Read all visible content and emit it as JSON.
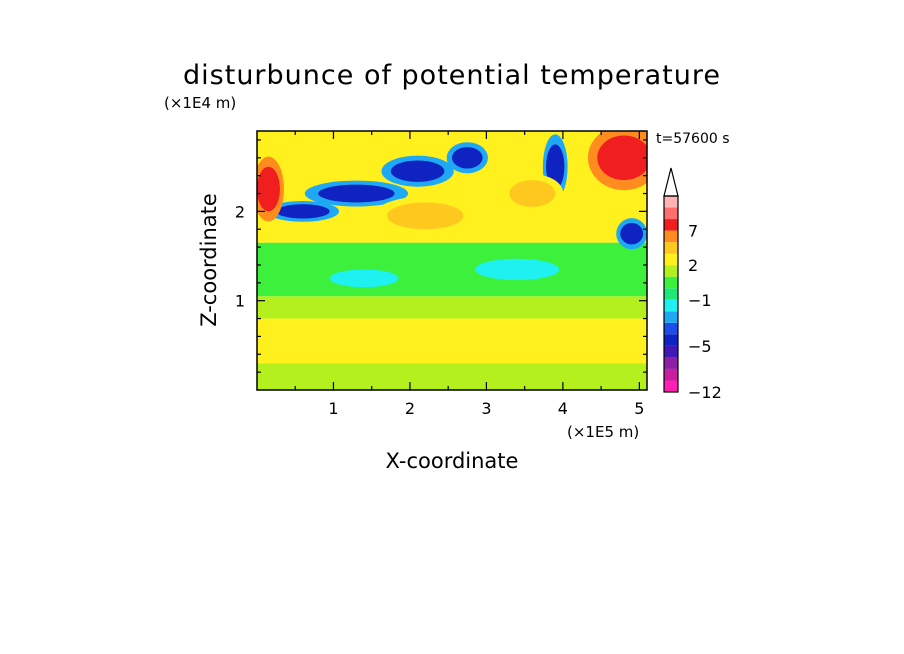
{
  "chart_data": {
    "type": "heatmap",
    "title": "disturbunce of potential temperature",
    "xlabel": "X-coordinate",
    "ylabel": "Z-coordinate",
    "x_unit": "(×1E5 m)",
    "y_unit": "(×1E4 m)",
    "time_label": "t=57600 s",
    "xlim": [
      0,
      5.1
    ],
    "ylim": [
      0,
      2.9
    ],
    "x_ticks": [
      {
        "value": 1,
        "label": "1"
      },
      {
        "value": 2,
        "label": "2"
      },
      {
        "value": 3,
        "label": "3"
      },
      {
        "value": 4,
        "label": "4"
      },
      {
        "value": 5,
        "label": "5"
      }
    ],
    "y_ticks": [
      {
        "value": 1,
        "label": "1"
      },
      {
        "value": 2,
        "label": "2"
      }
    ],
    "colorbar": {
      "levels": [
        -12,
        -10,
        -8,
        -6,
        -5,
        -4,
        -3,
        -2,
        -1,
        0,
        1,
        2,
        3,
        5,
        7,
        9,
        11
      ],
      "colors": [
        "#ff1fb4",
        "#c81ea0",
        "#8c1fa6",
        "#4019b6",
        "#0e23c0",
        "#1d4fe8",
        "#1fa8f4",
        "#1ff0f0",
        "#1fe876",
        "#3cf03c",
        "#b4f01e",
        "#fff01e",
        "#ffc81e",
        "#ff8c1e",
        "#f01e1e",
        "#ff6e6e",
        "#ffb4b4"
      ],
      "tick_labels": [
        {
          "value": 7,
          "label": "7"
        },
        {
          "value": 2,
          "label": "2"
        },
        {
          "value": -1,
          "label": "−1"
        },
        {
          "value": -5,
          "label": "−5"
        },
        {
          "value": -12,
          "label": "−12"
        }
      ],
      "extend": "max"
    },
    "field_features": [
      {
        "kind": "band",
        "z_min": 0.0,
        "z_max": 0.3,
        "value": 1.5,
        "desc": "warm near-surface layer"
      },
      {
        "kind": "band",
        "z_min": 0.3,
        "z_max": 0.8,
        "value": 2.5
      },
      {
        "kind": "band",
        "z_min": 0.8,
        "z_max": 1.05,
        "value": 1.5
      },
      {
        "kind": "band",
        "z_min": 1.05,
        "z_max": 1.65,
        "value": 0.5
      },
      {
        "kind": "band",
        "z_min": 1.65,
        "z_max": 2.9,
        "value": 2.5
      },
      {
        "kind": "blob",
        "x": 1.4,
        "z": 1.25,
        "rx": 0.45,
        "rz": 0.1,
        "value": -1.5
      },
      {
        "kind": "blob",
        "x": 3.4,
        "z": 1.35,
        "rx": 0.55,
        "rz": 0.12,
        "value": -1.5
      },
      {
        "kind": "blob",
        "x": 0.6,
        "z": 2.0,
        "rx": 0.35,
        "rz": 0.08,
        "value": -5
      },
      {
        "kind": "blob",
        "x": 1.3,
        "z": 2.2,
        "rx": 0.5,
        "rz": 0.1,
        "value": -5
      },
      {
        "kind": "blob",
        "x": 2.1,
        "z": 2.45,
        "rx": 0.35,
        "rz": 0.12,
        "value": -5
      },
      {
        "kind": "blob",
        "x": 2.75,
        "z": 2.6,
        "rx": 0.2,
        "rz": 0.12,
        "value": -5
      },
      {
        "kind": "blob",
        "x": 3.9,
        "z": 2.5,
        "rx": 0.12,
        "rz": 0.25,
        "value": -5
      },
      {
        "kind": "blob",
        "x": 4.9,
        "z": 1.75,
        "rx": 0.15,
        "rz": 0.12,
        "value": -5
      },
      {
        "kind": "blob",
        "x": 4.8,
        "z": 2.6,
        "rx": 0.35,
        "rz": 0.25,
        "value": 7
      },
      {
        "kind": "blob",
        "x": 0.15,
        "z": 2.25,
        "rx": 0.15,
        "rz": 0.25,
        "value": 7
      },
      {
        "kind": "blob",
        "x": 2.2,
        "z": 1.95,
        "rx": 0.5,
        "rz": 0.15,
        "value": 4
      },
      {
        "kind": "blob",
        "x": 3.6,
        "z": 2.2,
        "rx": 0.3,
        "rz": 0.15,
        "value": 4
      }
    ]
  }
}
